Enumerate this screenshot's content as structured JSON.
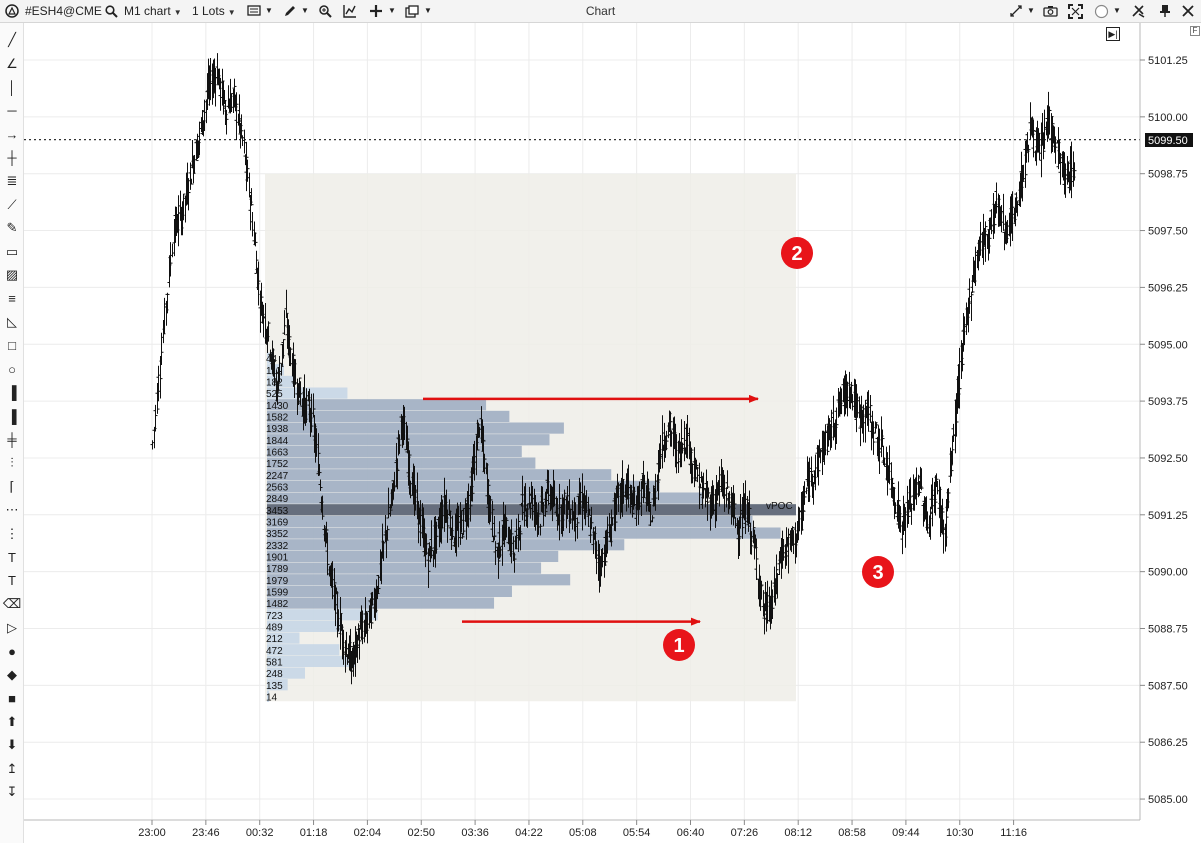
{
  "toolbar": {
    "symbol": "#ESH4@CME",
    "chart_type": "M1 chart",
    "lots": "1 Lots",
    "window_title": "Chart",
    "icons": [
      "app-logo-icon",
      "search-icon",
      "chart-style-icon",
      "draw-pen-icon",
      "zoom-icon",
      "indicators-icon",
      "crosshair-icon",
      "window-layout-icon",
      "cursor-sync-icon",
      "camera-icon",
      "fullscreen-icon",
      "circle-toggle-icon",
      "settings-icon",
      "pin-icon",
      "close-icon"
    ]
  },
  "left_tools": [
    "line-tool-icon",
    "angle-tool-icon",
    "vertical-line-icon",
    "horizontal-line-icon",
    "ray-icon",
    "cross-line-icon",
    "parallel-lines-icon",
    "polyline-icon",
    "pencil-icon",
    "ruler-icon",
    "measure-icon",
    "fib-icon",
    "triangle-icon",
    "rectangle-icon",
    "ellipse-icon",
    "volume-profile-icon",
    "market-profile-icon",
    "order-flow-icon",
    "delta-icon",
    "trend-icon",
    "grid-icon",
    "dots-icon",
    "text-frame-icon",
    "text-icon",
    "label-icon",
    "price-label-icon",
    "dot-marker-icon",
    "diamond-marker-icon",
    "square-marker-icon",
    "arrow-up-icon",
    "arrow-down-icon",
    "sort-up-icon",
    "sort-down-icon"
  ],
  "price_axis": {
    "labels": [
      "5101.25",
      "5100.00",
      "5098.75",
      "5097.50",
      "5096.25",
      "5095.00",
      "5093.75",
      "5092.50",
      "5091.25",
      "5090.00",
      "5088.75",
      "5087.50",
      "5086.25",
      "5085.00"
    ],
    "current_price": "5099.50"
  },
  "time_axis": {
    "labels": [
      "23:00",
      "23:46",
      "00:32",
      "01:18",
      "02:04",
      "02:50",
      "03:36",
      "04:22",
      "05:08",
      "05:54",
      "06:40",
      "07:26",
      "08:12",
      "08:58",
      "09:44",
      "10:30",
      "11:16"
    ]
  },
  "chart_data": {
    "type": "candlestick",
    "symbol": "#ESH4@CME",
    "timeframe": "M1",
    "ylim": [
      5084.6,
      5102.4
    ],
    "current_price": 5099.5,
    "price_path": [
      [
        0.0,
        5092.8
      ],
      [
        0.5,
        5095.2
      ],
      [
        1.0,
        5097.5
      ],
      [
        1.4,
        5097.9
      ],
      [
        1.8,
        5098.8
      ],
      [
        2.2,
        5099.6
      ],
      [
        2.6,
        5100.6
      ],
      [
        3.0,
        5101.0
      ],
      [
        3.4,
        5100.2
      ],
      [
        3.8,
        5100.4
      ],
      [
        4.2,
        5099.5
      ],
      [
        4.6,
        5098.0
      ],
      [
        5.0,
        5096.0
      ],
      [
        5.4,
        5095.2
      ],
      [
        5.8,
        5094.0
      ],
      [
        6.2,
        5095.5
      ],
      [
        6.6,
        5094.3
      ],
      [
        7.0,
        5093.7
      ],
      [
        7.4,
        5093.5
      ],
      [
        7.8,
        5092.0
      ],
      [
        8.2,
        5090.1
      ],
      [
        8.6,
        5089.1
      ],
      [
        9.0,
        5088.3
      ],
      [
        9.3,
        5088.0
      ],
      [
        9.6,
        5088.6
      ],
      [
        10.0,
        5088.9
      ],
      [
        10.4,
        5089.5
      ],
      [
        10.8,
        5090.7
      ],
      [
        11.2,
        5091.8
      ],
      [
        11.6,
        5093.4
      ],
      [
        12.0,
        5092.1
      ],
      [
        12.4,
        5091.2
      ],
      [
        12.8,
        5090.3
      ],
      [
        13.2,
        5090.8
      ],
      [
        13.6,
        5091.5
      ],
      [
        14.0,
        5090.8
      ],
      [
        14.4,
        5091.0
      ],
      [
        14.8,
        5091.8
      ],
      [
        15.2,
        5093.3
      ],
      [
        15.6,
        5091.7
      ],
      [
        16.0,
        5090.4
      ],
      [
        16.4,
        5091.0
      ],
      [
        16.8,
        5090.4
      ],
      [
        17.2,
        5091.4
      ],
      [
        17.6,
        5091.6
      ],
      [
        18.0,
        5091.2
      ],
      [
        18.4,
        5091.8
      ],
      [
        18.8,
        5091.3
      ],
      [
        19.2,
        5091.5
      ],
      [
        19.6,
        5091.2
      ],
      [
        20.0,
        5091.6
      ],
      [
        20.4,
        5090.9
      ],
      [
        20.8,
        5090.1
      ],
      [
        21.2,
        5090.8
      ],
      [
        21.6,
        5091.6
      ],
      [
        22.0,
        5091.9
      ],
      [
        22.4,
        5091.4
      ],
      [
        22.8,
        5091.9
      ],
      [
        23.2,
        5091.2
      ],
      [
        23.6,
        5092.7
      ],
      [
        24.0,
        5093.2
      ],
      [
        24.4,
        5092.6
      ],
      [
        24.8,
        5093.0
      ],
      [
        25.2,
        5092.2
      ],
      [
        25.6,
        5091.7
      ],
      [
        26.0,
        5091.5
      ],
      [
        26.4,
        5091.9
      ],
      [
        26.8,
        5091.6
      ],
      [
        27.2,
        5091.0
      ],
      [
        27.6,
        5091.4
      ],
      [
        28.0,
        5090.4
      ],
      [
        28.4,
        5089.1
      ],
      [
        28.8,
        5089.3
      ],
      [
        29.2,
        5090.4
      ],
      [
        29.6,
        5090.6
      ],
      [
        30.0,
        5090.9
      ],
      [
        30.4,
        5091.9
      ],
      [
        30.8,
        5092.3
      ],
      [
        31.2,
        5092.8
      ],
      [
        31.6,
        5093.2
      ],
      [
        32.0,
        5093.8
      ],
      [
        32.4,
        5094.1
      ],
      [
        32.8,
        5093.4
      ],
      [
        33.2,
        5093.5
      ],
      [
        33.6,
        5093.0
      ],
      [
        34.0,
        5092.5
      ],
      [
        34.4,
        5091.8
      ],
      [
        34.8,
        5091.0
      ],
      [
        35.2,
        5091.5
      ],
      [
        35.6,
        5092.0
      ],
      [
        36.0,
        5091.0
      ],
      [
        36.4,
        5091.9
      ],
      [
        36.8,
        5090.8
      ],
      [
        37.2,
        5093.0
      ],
      [
        37.6,
        5094.8
      ],
      [
        38.0,
        5096.2
      ],
      [
        38.4,
        5097.2
      ],
      [
        38.8,
        5097.4
      ],
      [
        39.2,
        5098.1
      ],
      [
        39.6,
        5097.5
      ],
      [
        40.0,
        5097.8
      ],
      [
        40.4,
        5098.7
      ],
      [
        40.8,
        5099.8
      ],
      [
        41.2,
        5099.1
      ],
      [
        41.6,
        5100.0
      ],
      [
        42.0,
        5099.3
      ],
      [
        42.4,
        5098.6
      ],
      [
        42.8,
        5098.9
      ],
      [
        43.2,
        5099.5
      ],
      [
        43.6,
        5100.6
      ],
      [
        44.0,
        5101.2
      ],
      [
        44.4,
        5100.3
      ],
      [
        44.8,
        5099.8
      ],
      [
        45.2,
        5098.9
      ],
      [
        45.6,
        5099.5
      ]
    ],
    "volume_profile": {
      "levels": [
        14,
        135,
        248,
        581,
        472,
        212,
        489,
        723,
        1482,
        1599,
        1979,
        1789,
        1901,
        2332,
        3352,
        3169,
        3453,
        2849,
        2563,
        2247,
        1752,
        1663,
        1844,
        1938,
        1582,
        1430,
        525,
        182,
        111,
        44
      ],
      "poc_volume": 3453,
      "poc_label": "vPOC",
      "box_price_range": [
        5087.15,
        5098.75
      ]
    },
    "annotations": [
      {
        "number": "1",
        "price": 5088.5
      },
      {
        "number": "2",
        "price": 5097.5
      },
      {
        "number": "3",
        "price": 5090.0
      }
    ],
    "arrows": [
      {
        "from_price": 5093.8,
        "to_price": 5093.8
      },
      {
        "from_price": 5088.9,
        "to_price": 5088.9
      }
    ]
  }
}
